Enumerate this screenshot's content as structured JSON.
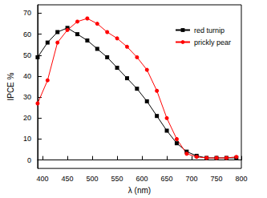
{
  "chart_data": {
    "type": "line",
    "x_label": "λ (nm)",
    "y_label": "IPCE %",
    "x": [
      390,
      410,
      430,
      450,
      470,
      490,
      510,
      530,
      550,
      570,
      590,
      610,
      630,
      650,
      670,
      690,
      710,
      730,
      750,
      770,
      790
    ],
    "series": [
      {
        "name": "red turnip",
        "color": "#000000",
        "marker": "square",
        "values": [
          49,
          56,
          61,
          63,
          60,
          57,
          53,
          49,
          44,
          39,
          34,
          28,
          21,
          14,
          8,
          4,
          2,
          1,
          1,
          1,
          1
        ]
      },
      {
        "name": "prickly pear",
        "color": "#ff0000",
        "marker": "circle",
        "values": [
          27,
          38,
          56,
          62,
          66,
          67.5,
          65,
          61,
          58,
          54,
          49,
          43,
          33,
          20,
          10,
          3,
          1.5,
          1,
          1,
          1,
          1.5
        ]
      }
    ],
    "xlim": [
      390,
      800
    ],
    "xticks": [
      400,
      450,
      500,
      550,
      600,
      650,
      700,
      750,
      800
    ],
    "ylim": [
      -4,
      74
    ],
    "yticks": [
      0,
      10,
      20,
      30,
      40,
      50,
      60,
      70
    ],
    "legend": "top-right",
    "grid": false
  }
}
